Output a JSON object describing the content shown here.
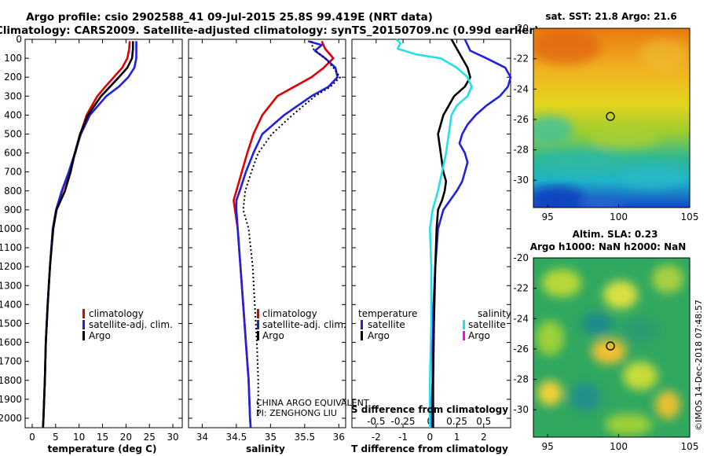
{
  "header": {
    "line1": "Argo profile: csio 2902588_41 09-Jul-2015 25.8S 99.419E (NRT data)",
    "line2": "Climatology: CARS2009. Satellite-adjusted climatology: synTS_20150709.nc (0.99d earlier)"
  },
  "colors": {
    "climatology": "#e00000",
    "satellite": "#2020dd",
    "argo": "#000000",
    "s_satellite": "#22e0e8",
    "s_argo": "#ff00ff"
  },
  "chart_data": [
    {
      "type": "line",
      "panel": "temperature",
      "xlabel": "temperature (deg C)",
      "ylabel": "depth",
      "xlim": [
        -1.5,
        32
      ],
      "ylim": [
        2050,
        0
      ],
      "xticks": [
        "0",
        "5",
        "10",
        "15",
        "20",
        "25",
        "30"
      ],
      "xtick_values": [
        0,
        5,
        10,
        15,
        20,
        25,
        30
      ],
      "yticks": [
        "0",
        "100",
        "200",
        "300",
        "400",
        "500",
        "600",
        "700",
        "800",
        "900",
        "1000",
        "1100",
        "1200",
        "1300",
        "1400",
        "1500",
        "1600",
        "1700",
        "1800",
        "1900",
        "2000"
      ],
      "ytick_values": [
        0,
        100,
        200,
        300,
        400,
        500,
        600,
        700,
        800,
        900,
        1000,
        1100,
        1200,
        1300,
        1400,
        1500,
        1600,
        1700,
        1800,
        1900,
        2000
      ],
      "legend": [
        "climatology",
        "satellite-adj. clim.",
        "Argo"
      ],
      "series": [
        {
          "name": "climatology",
          "color": "#e00000",
          "depth": [
            10,
            50,
            100,
            150,
            200,
            250,
            300,
            400,
            500,
            600,
            700,
            800,
            900,
            1000,
            1200,
            1400,
            1600,
            1800,
            2000,
            2050
          ],
          "values": [
            20.8,
            20.7,
            20.3,
            19.2,
            17.4,
            15.6,
            13.9,
            11.6,
            10.3,
            9.2,
            7.9,
            6.4,
            5.1,
            4.4,
            3.8,
            3.3,
            2.9,
            2.7,
            2.4,
            2.3
          ]
        },
        {
          "name": "satellite-adj. clim.",
          "color": "#2020dd",
          "depth": [
            10,
            50,
            100,
            150,
            200,
            250,
            300,
            400,
            500,
            600,
            700,
            800,
            900,
            1000,
            1200,
            1400,
            1600,
            1800,
            2000,
            2050
          ],
          "values": [
            22.2,
            22.2,
            22.2,
            21.8,
            20.5,
            18.5,
            15.8,
            12.3,
            10.4,
            9.1,
            7.8,
            6.3,
            5.1,
            4.4,
            3.8,
            3.3,
            2.9,
            2.7,
            2.4,
            2.3
          ]
        },
        {
          "name": "Argo",
          "color": "#000000",
          "depth": [
            10,
            50,
            100,
            150,
            200,
            250,
            300,
            400,
            500,
            600,
            700,
            800,
            900,
            1000,
            1200,
            1400,
            1600,
            1800,
            2000,
            2050
          ],
          "values": [
            21.5,
            21.5,
            21.3,
            20.3,
            18.5,
            16.6,
            14.7,
            11.9,
            10.2,
            9.1,
            8.2,
            7.0,
            5.2,
            4.5,
            3.8,
            3.3,
            2.9,
            2.7,
            2.4,
            2.3
          ]
        }
      ]
    },
    {
      "type": "line",
      "panel": "salinity",
      "xlabel": "salinity",
      "xlim": [
        33.8,
        36.1
      ],
      "ylim": [
        2050,
        0
      ],
      "xticks": [
        "34",
        "34.5",
        "35",
        "35.5",
        "36"
      ],
      "xtick_values": [
        34,
        34.5,
        35,
        35.5,
        36
      ],
      "legend": [
        "climatology",
        "satellite-adj. clim.",
        "Argo"
      ],
      "series": [
        {
          "name": "climatology",
          "color": "#e00000",
          "depth": [
            10,
            50,
            100,
            150,
            200,
            250,
            300,
            400,
            500,
            600,
            700,
            800,
            850,
            900,
            1000,
            1200,
            1400,
            1600,
            1800,
            2000,
            2050
          ],
          "values": [
            35.75,
            35.8,
            35.92,
            35.78,
            35.6,
            35.35,
            35.1,
            34.88,
            34.75,
            34.66,
            34.58,
            34.5,
            34.46,
            34.48,
            34.52,
            34.56,
            34.6,
            34.64,
            34.68,
            34.7,
            34.71
          ]
        },
        {
          "name": "satellite-adj. clim.",
          "color": "#2020dd",
          "depth": [
            10,
            30,
            60,
            100,
            150,
            200,
            250,
            300,
            400,
            500,
            600,
            700,
            800,
            850,
            900,
            1000,
            1200,
            1400,
            1600,
            1800,
            2000,
            2050
          ],
          "values": [
            35.55,
            35.75,
            35.65,
            35.8,
            35.95,
            35.98,
            35.85,
            35.6,
            35.2,
            34.88,
            34.75,
            34.64,
            34.55,
            34.5,
            34.5,
            34.52,
            34.56,
            34.6,
            34.64,
            34.68,
            34.7,
            34.71
          ]
        },
        {
          "name": "Argo",
          "color": "#000000",
          "depth": [
            10,
            50,
            100,
            150,
            200,
            250,
            300,
            400,
            500,
            600,
            700,
            800,
            900,
            1000,
            1200,
            1400,
            1600,
            1800,
            1900,
            2000
          ],
          "values": [
            35.6,
            35.62,
            35.8,
            35.92,
            36.02,
            35.88,
            35.65,
            35.32,
            35.02,
            34.82,
            34.72,
            34.63,
            34.6,
            34.68,
            34.74,
            34.77,
            34.8,
            34.82,
            34.82,
            34.82
          ]
        }
      ]
    },
    {
      "type": "line",
      "panel": "difference",
      "xlabel": "T difference from climatology",
      "top_label": "S difference from climatology",
      "xlim": [
        -2.9,
        3.0
      ],
      "ylim": [
        2050,
        0
      ],
      "xticks": [
        "-2",
        "-1",
        "0",
        "1",
        "2"
      ],
      "xtick_values": [
        -2,
        -1,
        0,
        1,
        2
      ],
      "s_xticks": [
        "-0.5",
        "-0.25",
        "0",
        "0.25",
        "0.5"
      ],
      "s_xtick_values": [
        -0.5,
        -0.25,
        0,
        0.25,
        0.5
      ],
      "legend_t_title": "temperature",
      "legend_s_title": "salinity",
      "legend_t": [
        "satellite",
        "Argo"
      ],
      "legend_s": [
        "satellite",
        "Argo"
      ],
      "series": [
        {
          "name": "T satellite",
          "color": "#2020dd",
          "depth": [
            0,
            30,
            60,
            100,
            150,
            200,
            250,
            300,
            350,
            400,
            450,
            500,
            550,
            600,
            650,
            700,
            750,
            800,
            900,
            1000,
            1200,
            1500,
            1800,
            2000,
            2050
          ],
          "values": [
            1.3,
            1.4,
            1.5,
            2.1,
            2.8,
            3.0,
            2.9,
            2.6,
            2.1,
            1.7,
            1.4,
            1.2,
            1.1,
            1.3,
            1.4,
            1.3,
            1.2,
            1.0,
            0.5,
            0.3,
            0.2,
            0.1,
            0.1,
            0.05,
            0.05
          ]
        },
        {
          "name": "T Argo",
          "color": "#000000",
          "depth": [
            0,
            50,
            100,
            150,
            200,
            250,
            300,
            350,
            400,
            500,
            600,
            700,
            750,
            800,
            850,
            900,
            1000,
            1200,
            1500,
            1800,
            2000,
            2050
          ],
          "values": [
            0.8,
            1.0,
            1.2,
            1.4,
            1.5,
            1.3,
            0.9,
            0.7,
            0.5,
            0.3,
            0.4,
            0.5,
            0.6,
            0.55,
            0.45,
            0.3,
            0.25,
            0.2,
            0.15,
            0.12,
            0.12,
            0.12
          ]
        },
        {
          "name": "S satellite",
          "color": "#22e0e8",
          "depth": [
            0,
            20,
            50,
            80,
            100,
            150,
            200,
            250,
            300,
            350,
            400,
            500,
            600,
            700,
            800,
            900,
            1000,
            1200,
            1500,
            1800,
            2000,
            2050
          ],
          "values": [
            -1.25,
            -1.1,
            -1.2,
            -0.5,
            0.4,
            1.0,
            1.4,
            1.55,
            1.4,
            1.0,
            0.8,
            0.7,
            0.6,
            0.45,
            0.3,
            0.1,
            0.0,
            0.05,
            0.05,
            0.0,
            0.0,
            0.0
          ]
        },
        {
          "name": "S Argo",
          "color": "#ff00ff",
          "depth": [],
          "values": []
        }
      ],
      "notes": [
        "CHINA ARGO EQUIVALENT",
        "PI: ZENGHONG LIU"
      ]
    },
    {
      "type": "heatmap",
      "panel": "sst-map",
      "title": "sat. SST: 21.8 Argo: 21.6",
      "xlim": [
        94,
        105
      ],
      "ylim": [
        -31.8,
        -20
      ],
      "xticks": [
        "95",
        "100",
        "105"
      ],
      "xtick_values": [
        95,
        100,
        105
      ],
      "yticks": [
        "-20",
        "-22",
        "-24",
        "-26",
        "-28",
        "-30"
      ],
      "ytick_values": [
        -20,
        -22,
        -24,
        -26,
        -28,
        -30
      ],
      "marker": {
        "lon": 99.419,
        "lat": -25.8
      }
    },
    {
      "type": "heatmap",
      "panel": "sla-map",
      "title": "Altim. SLA: 0.23",
      "subtitle": "Argo h1000: NaN h2000: NaN",
      "xlim": [
        94,
        105
      ],
      "ylim": [
        -31.8,
        -20
      ],
      "xticks": [
        "95",
        "100",
        "105"
      ],
      "xtick_values": [
        95,
        100,
        105
      ],
      "yticks": [
        "-20",
        "-22",
        "-24",
        "-26",
        "-28",
        "-30"
      ],
      "ytick_values": [
        -20,
        -22,
        -24,
        -26,
        -28,
        -30
      ],
      "marker": {
        "lon": 99.419,
        "lat": -25.8
      }
    }
  ],
  "watermark": "©IMOS 14-Dec-2018 07:48:57"
}
